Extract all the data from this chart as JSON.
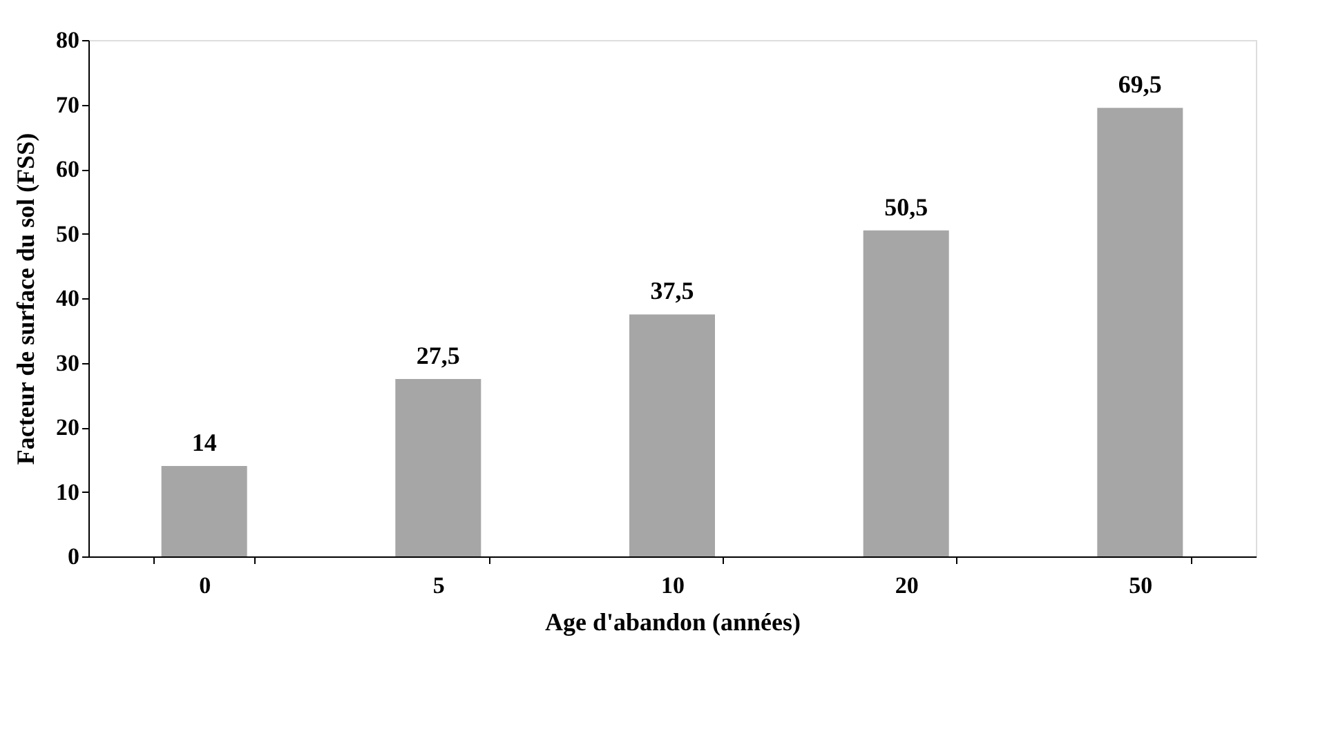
{
  "chart_data": {
    "type": "bar",
    "xlabel": "Age d'abandon (années)",
    "ylabel": "Facteur de surface du sol (FSS)",
    "categories": [
      "0",
      "5",
      "10",
      "20",
      "50"
    ],
    "values": [
      14,
      27.5,
      37.5,
      50.5,
      69.5
    ],
    "value_labels": [
      "14",
      "27,5",
      "37,5",
      "50,5",
      "69,5"
    ],
    "color": "#a6a6a6",
    "ylim": [
      0,
      80
    ],
    "yticks": [
      0,
      10,
      20,
      30,
      40,
      50,
      60,
      70,
      80
    ],
    "grid": false
  }
}
